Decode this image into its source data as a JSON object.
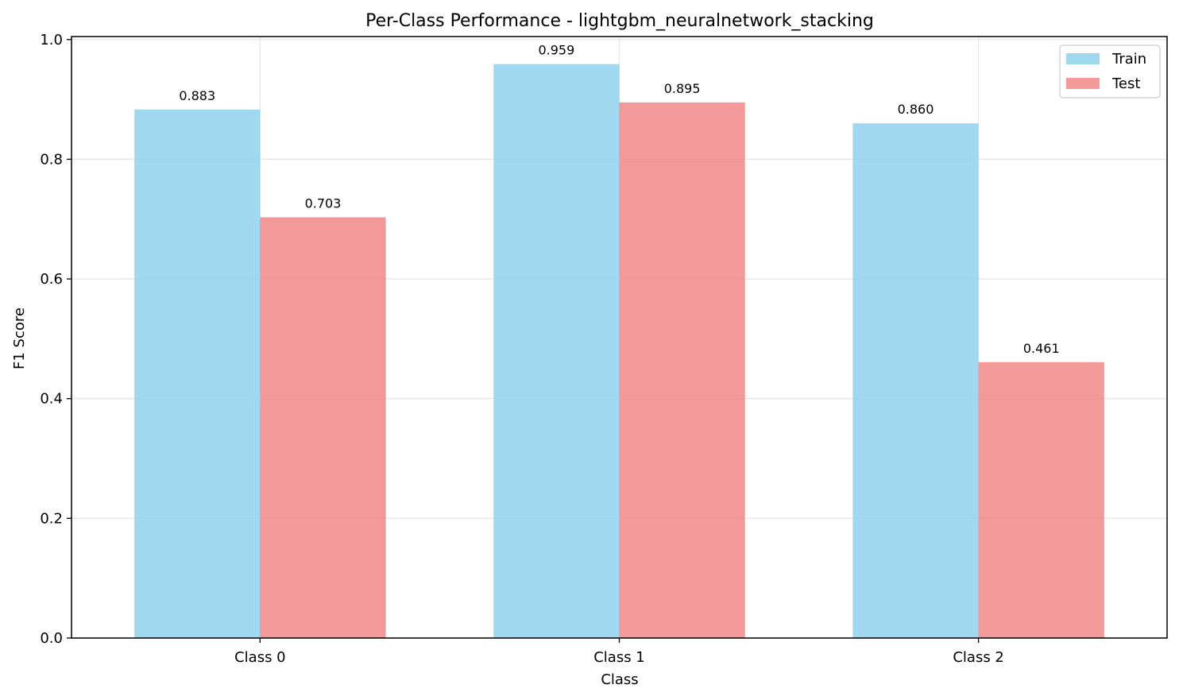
{
  "chart_data": {
    "type": "bar",
    "title": "Per-Class Performance - lightgbm_neuralnetwork_stacking",
    "xlabel": "Class",
    "ylabel": "F1 Score",
    "categories": [
      "Class 0",
      "Class 1",
      "Class 2"
    ],
    "series": [
      {
        "name": "Train",
        "values": [
          0.883,
          0.959,
          0.86
        ],
        "labels": [
          "0.883",
          "0.959",
          "0.860"
        ],
        "color": "#87CEEB"
      },
      {
        "name": "Test",
        "values": [
          0.703,
          0.895,
          0.461
        ],
        "labels": [
          "0.703",
          "0.895",
          "0.461"
        ],
        "color": "#F08080"
      }
    ],
    "ylim": [
      0,
      1.005
    ],
    "yticks": [
      0.0,
      0.2,
      0.4,
      0.6,
      0.8,
      1.0
    ],
    "ytick_labels": [
      "0.0",
      "0.2",
      "0.4",
      "0.6",
      "0.8",
      "1.0"
    ],
    "grid": true,
    "legend_position": "top-right"
  }
}
